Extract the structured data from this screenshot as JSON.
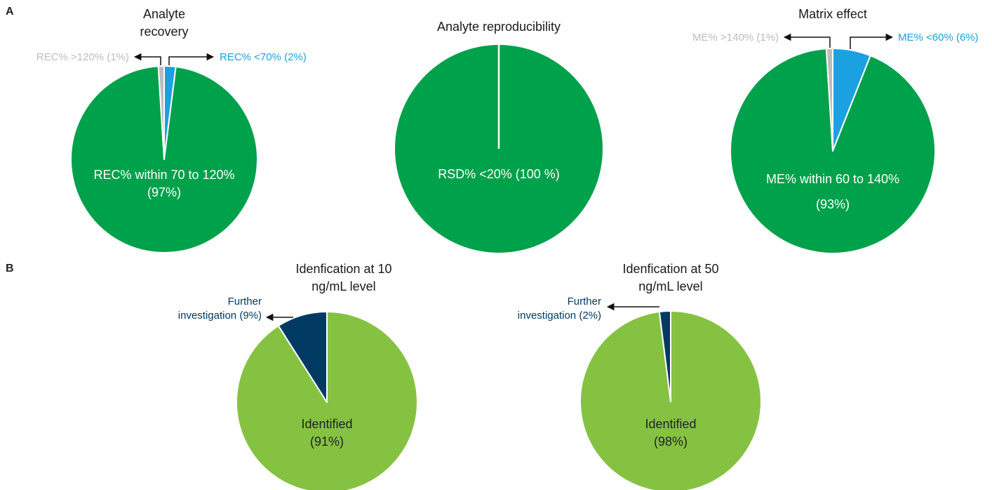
{
  "panel_labels": [
    "A",
    "B"
  ],
  "chart_data": [
    {
      "type": "pie",
      "title": "Analyte recovery",
      "categories": [
        "REC% <70%",
        "REC% within 70 to 120%",
        "REC% >120%"
      ],
      "values": [
        2,
        97,
        1
      ],
      "value_labels": [
        "(2%)",
        "(97%)",
        "(1%)"
      ],
      "colors": [
        "#1ba1e2",
        "#00a14b",
        "#bdbdbd"
      ]
    },
    {
      "type": "pie",
      "title": "Analyte reproducibility",
      "categories": [
        "RSD% <20%"
      ],
      "values": [
        100
      ],
      "value_labels": [
        "(100 %)"
      ],
      "colors": [
        "#00a14b"
      ]
    },
    {
      "type": "pie",
      "title": "Matrix effect",
      "categories": [
        "ME% <60%",
        "ME% within 60 to 140%",
        "ME% >140%"
      ],
      "values": [
        6,
        93,
        1
      ],
      "value_labels": [
        "(6%)",
        "(93%)",
        "(1%)"
      ],
      "colors": [
        "#1ba1e2",
        "#00a14b",
        "#bdbdbd"
      ]
    },
    {
      "type": "pie",
      "title": "Idenfication at 10 ng/mL level",
      "categories": [
        "Identified",
        "Further investigation"
      ],
      "values": [
        91,
        9
      ],
      "value_labels": [
        "(91%)",
        "(9%)"
      ],
      "colors": [
        "#86c242",
        "#003a63"
      ]
    },
    {
      "type": "pie",
      "title": "Idenfication at 50 ng/mL level",
      "categories": [
        "Identified",
        "Further investigation"
      ],
      "values": [
        98,
        2
      ],
      "value_labels": [
        "(98%)",
        "(2%)"
      ],
      "colors": [
        "#86c242",
        "#003a63"
      ]
    }
  ]
}
